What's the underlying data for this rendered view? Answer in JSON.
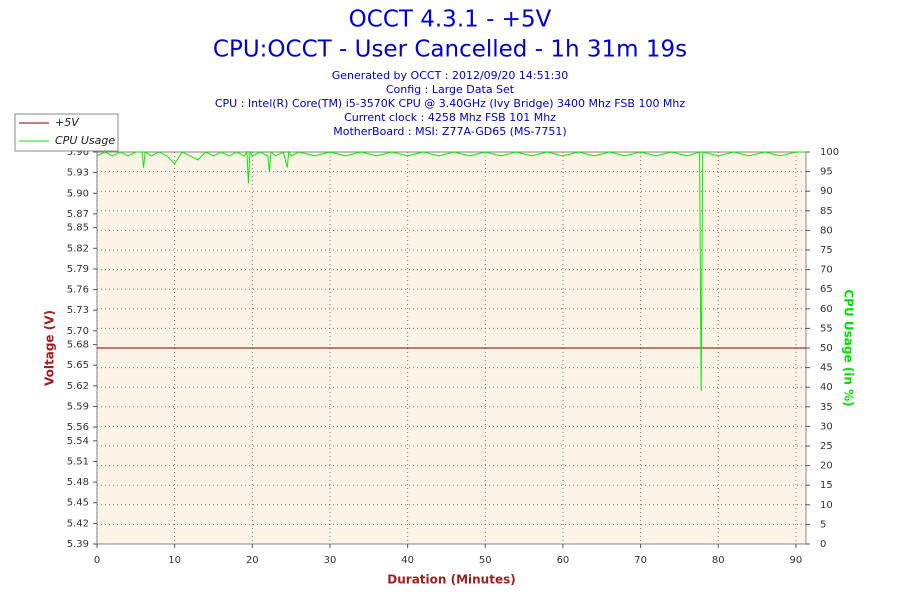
{
  "chart_data": {
    "type": "line",
    "title": "OCCT 4.3.1 - +5V",
    "subtitle": "CPU:OCCT - User Cancelled - 1h 31m 19s",
    "info": [
      "Generated by OCCT : 2012/09/20 14:51:30",
      "Config : Large Data Set",
      "CPU : Intel(R) Core(TM) i5-3570K CPU @ 3.40GHz (Ivy Bridge) 3400 Mhz FSB 100 Mhz",
      "Current clock : 4258 Mhz FSB 101 Mhz",
      "MotherBoard : MSI: Z77A-GD65 (MS-7751)"
    ],
    "x_label": "Duration (Minutes)",
    "y_label": "Voltage (V)",
    "y2_label": "CPU Usage (in %)",
    "y_label_color": "#a02020",
    "y2_label_color": "#00e000",
    "legend": "top-left",
    "grid": true,
    "background": "#fcf4e6",
    "xlim": [
      0,
      91.3
    ],
    "xticks": [
      0,
      10,
      20,
      30,
      40,
      50,
      60,
      70,
      80,
      90
    ],
    "ylim": [
      5.39,
      5.96
    ],
    "yticks": [
      5.39,
      5.42,
      5.45,
      5.48,
      5.51,
      5.54,
      5.56,
      5.59,
      5.62,
      5.65,
      5.68,
      {
        "value": 5.7,
        "label": "5.70"
      },
      5.73,
      5.76,
      5.79,
      5.82,
      5.85,
      5.87,
      {
        "value": 5.9,
        "label": "5.90"
      },
      5.93,
      5.96
    ],
    "y2lim": [
      0,
      100
    ],
    "y2ticks": [
      0,
      5,
      10,
      15,
      20,
      25,
      30,
      35,
      40,
      45,
      50,
      55,
      60,
      65,
      70,
      75,
      80,
      85,
      90,
      95,
      100
    ],
    "x": [
      0,
      1,
      2,
      3,
      4,
      5,
      5.8,
      6,
      6.2,
      7,
      8,
      9,
      10,
      11,
      12,
      13,
      14,
      15,
      16,
      17,
      18,
      19,
      19.3,
      19.5,
      19.7,
      20,
      21,
      22,
      22.2,
      22.4,
      23,
      24,
      24.5,
      24.7,
      25,
      26,
      28,
      30,
      32,
      34,
      36,
      38,
      40,
      42,
      44,
      46,
      48,
      50,
      52,
      54,
      56,
      58,
      60,
      62,
      64,
      66,
      68,
      70,
      72,
      74,
      76,
      77.6,
      77.8,
      78,
      80,
      82,
      84,
      86,
      88,
      90,
      91.3
    ],
    "series": [
      {
        "name": "+5V",
        "color": "#800000",
        "values": [
          5.675,
          5.675,
          5.675,
          5.675,
          5.675,
          5.675,
          5.675,
          5.675,
          5.675,
          5.675,
          5.675,
          5.675,
          5.675,
          5.675,
          5.675,
          5.675,
          5.675,
          5.675,
          5.675,
          5.675,
          5.675,
          5.675,
          5.675,
          5.675,
          5.675,
          5.675,
          5.675,
          5.675,
          5.675,
          5.675,
          5.675,
          5.675,
          5.675,
          5.675,
          5.675,
          5.675,
          5.675,
          5.675,
          5.675,
          5.675,
          5.675,
          5.675,
          5.675,
          5.675,
          5.675,
          5.675,
          5.675,
          5.675,
          5.675,
          5.675,
          5.675,
          5.675,
          5.675,
          5.675,
          5.675,
          5.675,
          5.675,
          5.675,
          5.675,
          5.675,
          5.675,
          5.675,
          5.675,
          5.675,
          5.675,
          5.675,
          5.675,
          5.675,
          5.675,
          5.675,
          5.675
        ]
      },
      {
        "name": "CPU Usage",
        "color": "#00ee00",
        "axis": "y2",
        "values": [
          99,
          100,
          99,
          100,
          99,
          100,
          100,
          96,
          100,
          99,
          100,
          99,
          97,
          100,
          99,
          98,
          100,
          99,
          100,
          99,
          100,
          99,
          100,
          92,
          100,
          99,
          100,
          99,
          95,
          100,
          99,
          100,
          96,
          100,
          99,
          100,
          99,
          100,
          99,
          100,
          99,
          100,
          99,
          100,
          99,
          100,
          99,
          100,
          99,
          100,
          99,
          100,
          99,
          100,
          99,
          100,
          99,
          100,
          99,
          100,
          99,
          100,
          39,
          100,
          99,
          100,
          99,
          100,
          99,
          100,
          100
        ]
      }
    ]
  }
}
